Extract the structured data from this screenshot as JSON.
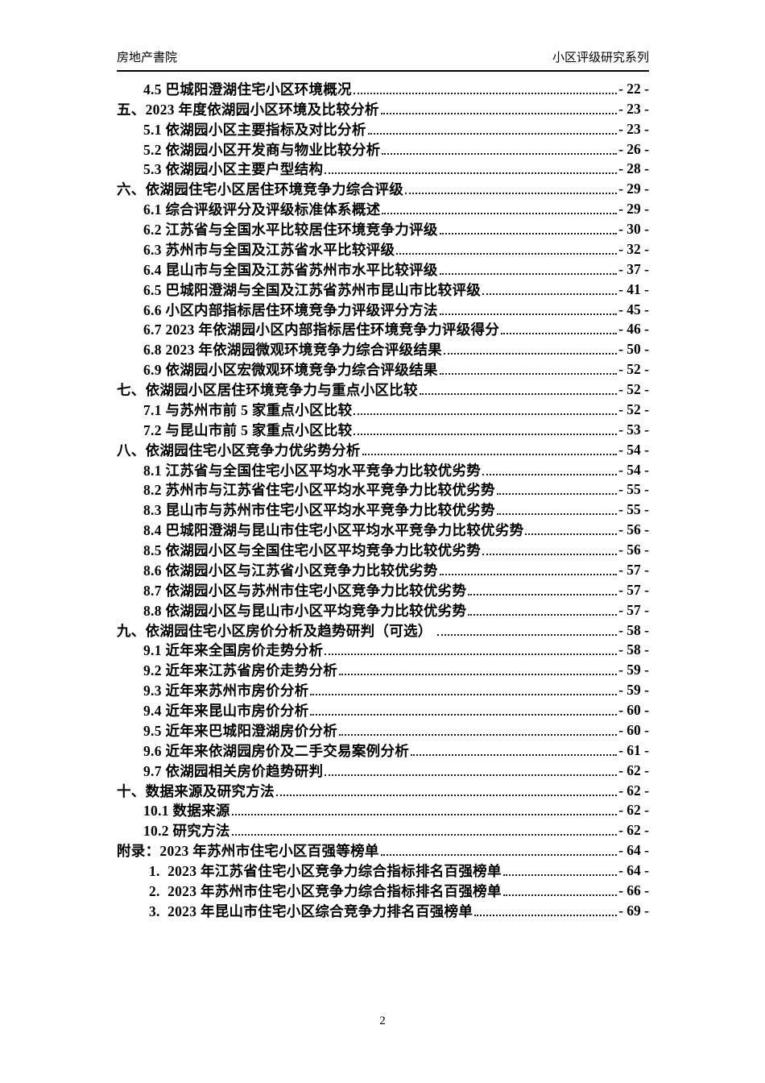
{
  "header": {
    "left": "房地产書院",
    "right": "小区评级研究系列"
  },
  "footer": {
    "page_number": "2"
  },
  "toc": {
    "entries": [
      {
        "level": 2,
        "label": "4.5 巴城阳澄湖住宅小区环境概况",
        "page": "- 22 -"
      },
      {
        "level": 1,
        "label": "五、2023 年度依湖园小区环境及比较分析",
        "page": "- 23 -"
      },
      {
        "level": 2,
        "label": "5.1 依湖园小区主要指标及对比分析",
        "page": "- 23 -"
      },
      {
        "level": 2,
        "label": "5.2 依湖园小区开发商与物业比较分析",
        "page": "- 26 -"
      },
      {
        "level": 2,
        "label": "5.3 依湖园小区主要户型结构",
        "page": "- 28 -"
      },
      {
        "level": 1,
        "label": "六、依湖园住宅小区居住环境竞争力综合评级",
        "page": "- 29 -"
      },
      {
        "level": 2,
        "label": "6.1 综合评级评分及评级标准体系概述",
        "page": "- 29 -"
      },
      {
        "level": 2,
        "label": "6.2 江苏省与全国水平比较居住环境竞争力评级",
        "page": "- 30 -"
      },
      {
        "level": 2,
        "label": "6.3 苏州市与全国及江苏省水平比较评级",
        "page": "- 32 -"
      },
      {
        "level": 2,
        "label": "6.4 昆山市与全国及江苏省苏州市水平比较评级",
        "page": "- 37 -"
      },
      {
        "level": 2,
        "label": "6.5 巴城阳澄湖与全国及江苏省苏州市昆山市比较评级",
        "page": "- 41 -"
      },
      {
        "level": 2,
        "label": "6.6 小区内部指标居住环境竞争力评级评分方法",
        "page": "- 45 -"
      },
      {
        "level": 2,
        "label": "6.7 2023 年依湖园小区内部指标居住环境竞争力评级得分",
        "page": "- 46 -"
      },
      {
        "level": 2,
        "label": "6.8 2023 年依湖园微观环境竞争力综合评级结果",
        "page": "- 50 -"
      },
      {
        "level": 2,
        "label": "6.9 依湖园小区宏微观环境竞争力综合评级结果",
        "page": "- 52 -"
      },
      {
        "level": 1,
        "label": "七、依湖园小区居住环境竞争力与重点小区比较",
        "page": "- 52 -"
      },
      {
        "level": 2,
        "label": "7.1 与苏州市前 5 家重点小区比较",
        "page": "- 52 -"
      },
      {
        "level": 2,
        "label": "7.2 与昆山市前 5 家重点小区比较",
        "page": "- 53 -"
      },
      {
        "level": 1,
        "label": "八、依湖园住宅小区竞争力优劣势分析",
        "page": "- 54 -"
      },
      {
        "level": 2,
        "label": "8.1 江苏省与全国住宅小区平均水平竞争力比较优劣势",
        "page": "- 54 -"
      },
      {
        "level": 2,
        "label": "8.2 苏州市与江苏省住宅小区平均水平竞争力比较优劣势",
        "page": "- 55 -"
      },
      {
        "level": 2,
        "label": "8.3 昆山市与苏州市住宅小区平均水平竞争力比较优劣势",
        "page": "- 55 -"
      },
      {
        "level": 2,
        "label": "8.4 巴城阳澄湖与昆山市住宅小区平均水平竞争力比较优劣势",
        "page": "- 56 -"
      },
      {
        "level": 2,
        "label": "8.5 依湖园小区与全国住宅小区平均竞争力比较优劣势",
        "page": "- 56 -"
      },
      {
        "level": 2,
        "label": "8.6 依湖园小区与江苏省小区竞争力比较优劣势",
        "page": "- 57 -"
      },
      {
        "level": 2,
        "label": "8.7 依湖园小区与苏州市住宅小区竞争力比较优劣势",
        "page": "- 57 -"
      },
      {
        "level": 2,
        "label": "8.8 依湖园小区与昆山市小区平均竞争力比较优劣势",
        "page": "- 57 -"
      },
      {
        "level": 1,
        "label": "九、依湖园住宅小区房价分析及趋势研判（可选） ",
        "page": "- 58 -"
      },
      {
        "level": 2,
        "label": "9.1 近年来全国房价走势分析",
        "page": "- 58 -"
      },
      {
        "level": 2,
        "label": "9.2 近年来江苏省房价走势分析",
        "page": "- 59 -"
      },
      {
        "level": 2,
        "label": "9.3 近年来苏州市房价分析",
        "page": "- 59 -"
      },
      {
        "level": 2,
        "label": "9.4 近年来昆山市房价分析",
        "page": "- 60 -"
      },
      {
        "level": 2,
        "label": "9.5 近年来巴城阳澄湖房价分析",
        "page": "- 60 -"
      },
      {
        "level": 2,
        "label": "9.6 近年来依湖园房价及二手交易案例分析",
        "page": "- 61 -"
      },
      {
        "level": 2,
        "label": "9.7 依湖园相关房价趋势研判",
        "page": "- 62 -"
      },
      {
        "level": 1,
        "label": "十、数据来源及研究方法",
        "page": "- 62 -"
      },
      {
        "level": 2,
        "label": "10.1 数据来源",
        "page": "- 62 -"
      },
      {
        "level": 2,
        "label": "10.2 研究方法",
        "page": "- 62 -"
      },
      {
        "level": 1,
        "label": "附录：2023 年苏州市住宅小区百强等榜单",
        "page": "- 64 -"
      },
      {
        "level": 3,
        "label": "1.  2023 年江苏省住宅小区竞争力综合指标排名百强榜单",
        "page": "- 64 -"
      },
      {
        "level": 3,
        "label": "2.  2023 年苏州市住宅小区竞争力综合指标排名百强榜单",
        "page": "- 66 -"
      },
      {
        "level": 3,
        "label": "3.  2023 年昆山市住宅小区综合竞争力排名百强榜单",
        "page": "- 69 -"
      }
    ]
  }
}
